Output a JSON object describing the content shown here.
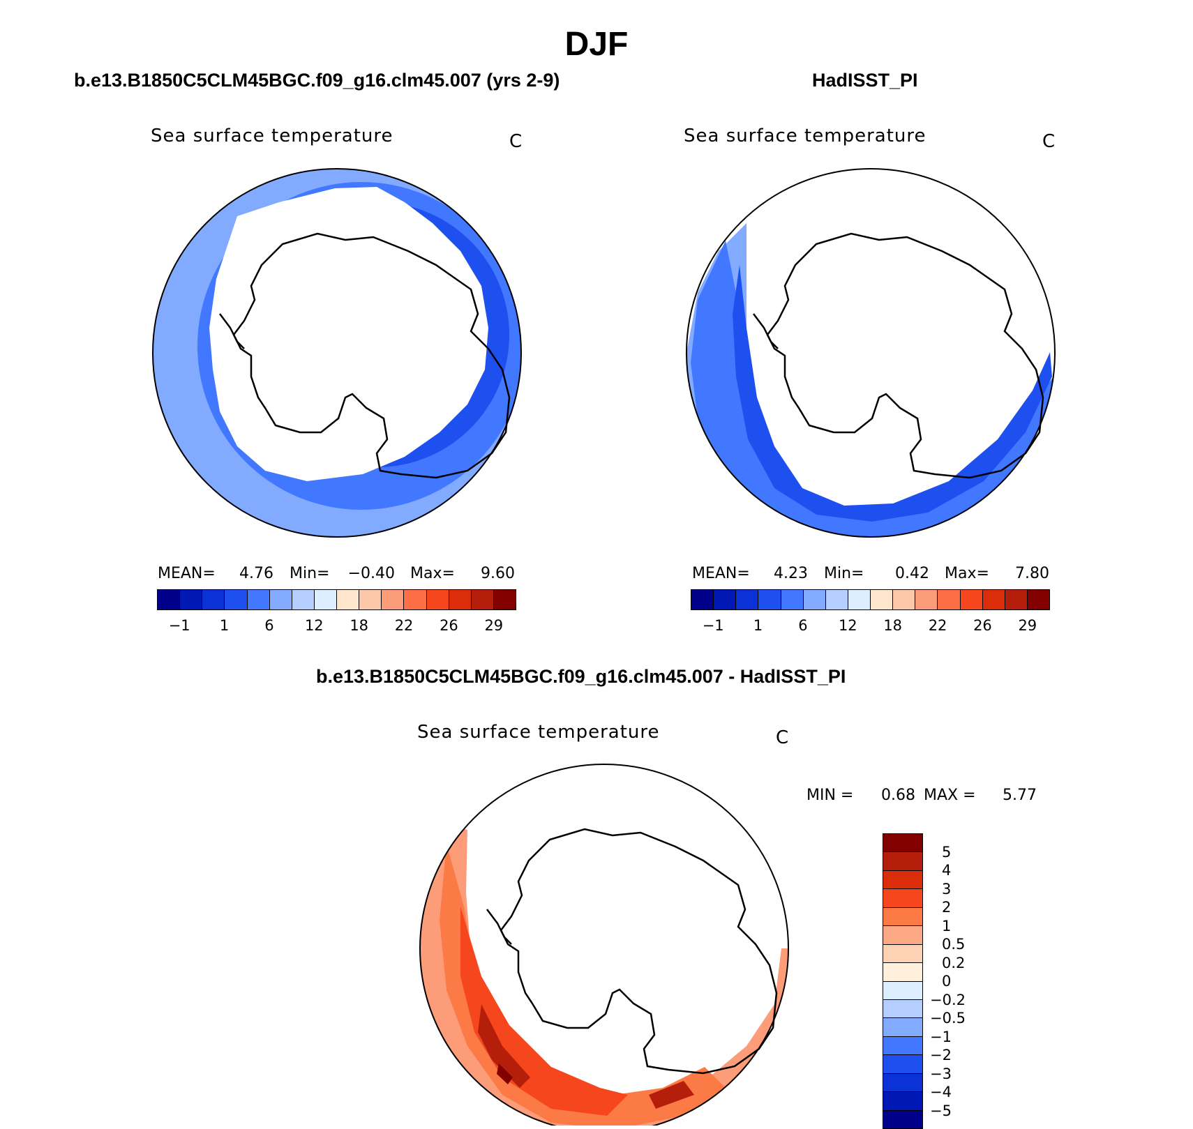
{
  "header": {
    "title": "DJF"
  },
  "panels": [
    {
      "title": "b.e13.B1850C5CLM45BGC.f09_g16.clm45.007 (yrs 2-9)",
      "variable": "Sea surface temperature",
      "units": "C",
      "stats": {
        "mean_label": "MEAN=",
        "mean": "4.76",
        "min_label": "Min=",
        "min": "−0.40",
        "max_label": "Max=",
        "max": "9.60"
      }
    },
    {
      "title": "HadISST_PI",
      "variable": "Sea surface temperature",
      "units": "C",
      "stats": {
        "mean_label": "MEAN=",
        "mean": "4.23",
        "min_label": "Min=",
        "min": "0.42",
        "max_label": "Max=",
        "max": "7.80"
      }
    },
    {
      "title": "b.e13.B1850C5CLM45BGC.f09_g16.clm45.007 - HadISST_PI",
      "variable": "Sea surface temperature",
      "units": "C",
      "stats": {
        "min_label": "MIN =",
        "min": "0.68",
        "max_label": "MAX =",
        "max": "5.77"
      }
    }
  ],
  "colorbar_abs": {
    "colors": [
      "#00008b",
      "#0018b4",
      "#0a32d6",
      "#1e50f0",
      "#4178ff",
      "#82aaff",
      "#b4cfff",
      "#dceeff",
      "#fee6cc",
      "#fdc8aa",
      "#fc9c78",
      "#fb6e46",
      "#f5461e",
      "#dc2d0a",
      "#b41e0a",
      "#820000"
    ],
    "ticks": [
      "−1",
      "1",
      "6",
      "12",
      "18",
      "22",
      "26",
      "29"
    ]
  },
  "colorbar_diff": {
    "colors": [
      "#820000",
      "#b41e0a",
      "#dc2d0a",
      "#f5461e",
      "#fb7a46",
      "#fca884",
      "#fdd2b4",
      "#fff0dc",
      "#dceeff",
      "#b4cfff",
      "#82aaff",
      "#4178ff",
      "#1e50f0",
      "#0a32d6",
      "#0018b4",
      "#00008b"
    ],
    "ticks": [
      "5",
      "4",
      "3",
      "2",
      "1",
      "0.5",
      "0.2",
      "0",
      "−0.2",
      "−0.5",
      "−1",
      "−2",
      "−3",
      "−4",
      "−5"
    ]
  },
  "map_colors": {
    "ocean_light": "#82aaff",
    "ocean_mid": "#4178ff",
    "ocean_dark": "#1e50f0",
    "diff_light": "#fc9c78",
    "diff_mid": "#fb7a46",
    "diff_strong": "#f5461e",
    "diff_dark": "#b41e0a",
    "diff_darkest": "#820000",
    "land": "#ffffff"
  }
}
